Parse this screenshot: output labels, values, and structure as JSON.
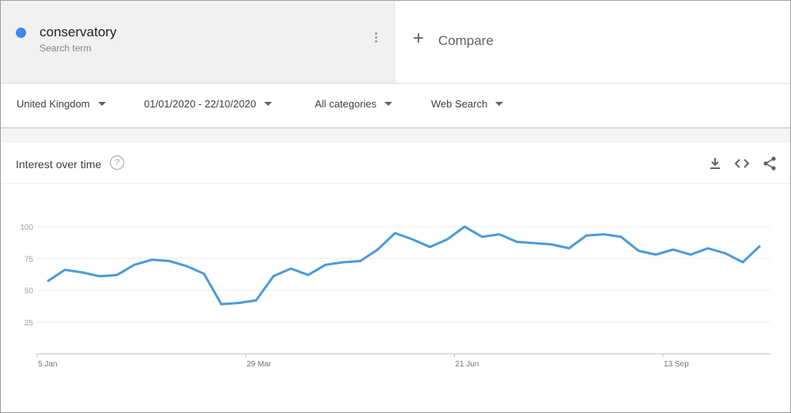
{
  "search_term": {
    "name": "conservatory",
    "subtitle": "Search term",
    "color": "#4285f4"
  },
  "compare": {
    "label": "Compare"
  },
  "filters": {
    "region": "United Kingdom",
    "date_range": "01/01/2020 - 22/10/2020",
    "category": "All categories",
    "search_type": "Web Search"
  },
  "card": {
    "title": "Interest over time",
    "help": "?"
  },
  "icons": {
    "menu": "more-vert-icon",
    "add": "plus-icon",
    "download": "download-icon",
    "embed": "embed-code-icon",
    "share": "share-icon",
    "help": "help-circle-icon"
  },
  "chart_data": {
    "type": "line",
    "title": "",
    "xlabel": "",
    "ylabel": "",
    "ylim": [
      0,
      100
    ],
    "yticks": [
      25,
      50,
      75,
      100
    ],
    "x_tick_labels": [
      "5 Jan",
      "29 Mar",
      "21 Jun",
      "13 Sep"
    ],
    "grid": true,
    "line_color": "#4d9ad9",
    "series": [
      {
        "values": [
          57,
          66,
          64,
          61,
          62,
          70,
          74,
          73,
          69,
          63,
          39,
          40,
          42,
          61,
          67,
          62,
          70,
          72,
          73,
          82,
          95,
          90,
          84,
          90,
          100,
          92,
          94,
          88,
          87,
          86,
          83,
          93,
          94,
          92,
          81,
          78,
          82,
          78,
          83,
          79,
          72,
          85
        ]
      }
    ]
  }
}
